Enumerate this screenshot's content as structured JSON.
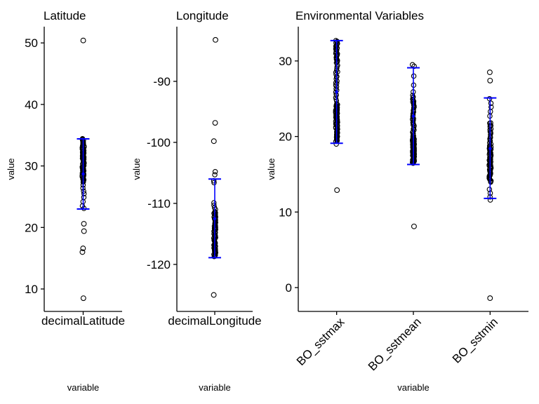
{
  "figure": {
    "background": "#ffffff",
    "colors": {
      "point_stroke": "#000000",
      "errorbar": "#0000ff",
      "axis": "#000000",
      "text": "#000000"
    }
  },
  "chart_data": [
    {
      "type": "scatter",
      "title": "Latitude",
      "xlabel": "variable",
      "ylabel": "value",
      "categories": [
        "decimalLatitude"
      ],
      "yticks": [
        10,
        20,
        30,
        40,
        50
      ],
      "ylim": [
        6.4,
        52.6
      ],
      "grid": false,
      "legend": false,
      "x_tick_rotation": 0,
      "series": [
        {
          "category": "decimalLatitude",
          "dense_ranges": [
            [
              27.3,
              34.5,
              85
            ]
          ],
          "points": [
            26.9,
            26.4,
            25.9,
            25.5,
            24.9,
            24.2,
            23.5,
            23.1
          ],
          "outliers": [
            50.4,
            20.6,
            19.4,
            16.6,
            16.0,
            8.5
          ],
          "errorbar": {
            "mean": 28.7,
            "lower": 23.0,
            "upper": 34.4
          }
        }
      ]
    },
    {
      "type": "scatter",
      "title": "Longitude",
      "xlabel": "variable",
      "ylabel": "value",
      "categories": [
        "decimalLongitude"
      ],
      "yticks": [
        -120,
        -110,
        -100,
        -90
      ],
      "ylim": [
        -127.7,
        -81.0
      ],
      "grid": false,
      "legend": false,
      "x_tick_rotation": 0,
      "series": [
        {
          "category": "decimalLongitude",
          "dense_ranges": [
            [
              -118.8,
              -111.3,
              80
            ]
          ],
          "points": [
            -104.8,
            -105.3,
            -106.3,
            -106.6,
            -109.9,
            -110.3,
            -110.7,
            -111.0
          ],
          "outliers": [
            -83.2,
            -96.8,
            -99.8,
            -125.0
          ],
          "errorbar": {
            "mean": -112.5,
            "lower": -118.9,
            "upper": -106.0
          }
        }
      ]
    },
    {
      "type": "scatter",
      "title": "Environmental Variables",
      "xlabel": "variable",
      "ylabel": "value",
      "categories": [
        "BO_sstmax",
        "BO_sstmean",
        "BO_sstmin"
      ],
      "yticks": [
        0,
        10,
        20,
        30
      ],
      "ylim": [
        -3.2,
        34.5
      ],
      "grid": false,
      "legend": false,
      "x_tick_rotation": 45,
      "series": [
        {
          "category": "BO_sstmax",
          "dense_ranges": [
            [
              29.8,
              32.8,
              28
            ],
            [
              26.0,
              29.8,
              18
            ],
            [
              24.3,
              26.0,
              7
            ],
            [
              19.3,
              24.3,
              75
            ]
          ],
          "points": [
            19.0
          ],
          "outliers": [
            12.9
          ],
          "errorbar": {
            "mean": 25.9,
            "lower": 19.1,
            "upper": 32.7
          }
        },
        {
          "category": "BO_sstmean",
          "dense_ranges": [
            [
              21.3,
              25.5,
              30
            ],
            [
              19.9,
              21.3,
              10
            ],
            [
              16.4,
              19.9,
              70
            ]
          ],
          "points": [
            29.5,
            29.3,
            28.0,
            26.8,
            25.9
          ],
          "outliers": [
            8.1
          ],
          "errorbar": {
            "mean": 22.7,
            "lower": 16.3,
            "upper": 29.1
          }
        },
        {
          "category": "BO_sstmin",
          "dense_ranges": [
            [
              18.8,
              21.8,
              18
            ],
            [
              13.9,
              18.8,
              60
            ]
          ],
          "points": [
            25.0,
            24.4,
            23.9,
            23.3,
            22.7,
            21.8,
            13.0,
            12.5,
            12.0,
            11.6
          ],
          "outliers": [
            28.5,
            27.4,
            -1.4
          ],
          "errorbar": {
            "mean": 18.4,
            "lower": 11.8,
            "upper": 25.1
          }
        }
      ]
    }
  ]
}
